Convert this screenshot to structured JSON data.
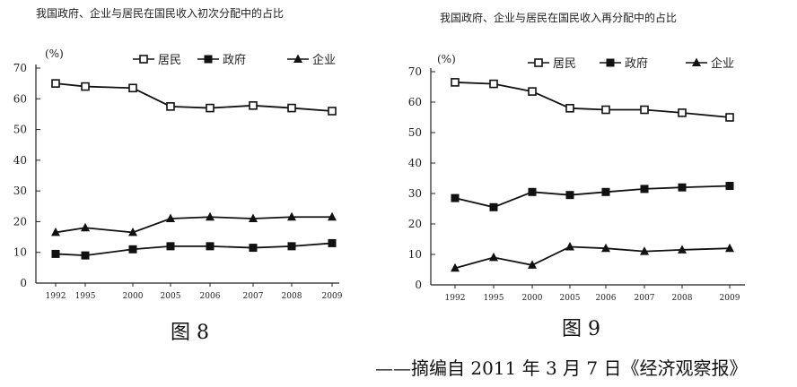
{
  "chart_data": [
    {
      "type": "line",
      "title": "我国政府、企业与居民在国民收入初次分配中的占比",
      "ylabel": "(%)",
      "ylim": [
        0,
        70
      ],
      "yticks": [
        0,
        10,
        20,
        30,
        40,
        50,
        60,
        70
      ],
      "categories": [
        "1992",
        "1995",
        "2000",
        "2005",
        "2006",
        "2007",
        "2008",
        "2009"
      ],
      "series": [
        {
          "name": "居民",
          "marker": "open-square",
          "values": [
            65,
            64,
            63.5,
            57.5,
            57,
            57.8,
            57,
            56
          ]
        },
        {
          "name": "政府",
          "marker": "filled-square",
          "values": [
            9.5,
            9,
            11,
            12,
            12,
            11.5,
            12,
            13
          ]
        },
        {
          "name": "企业",
          "marker": "filled-triangle",
          "values": [
            16.5,
            18,
            16.5,
            21,
            21.5,
            21,
            21.5,
            21.5
          ]
        }
      ],
      "figure_label": "图 8"
    },
    {
      "type": "line",
      "title": "我国政府、企业与居民在国民收入再分配中的占比",
      "ylabel": "(%)",
      "ylim": [
        0,
        70
      ],
      "yticks": [
        0,
        10,
        20,
        30,
        40,
        50,
        60,
        70
      ],
      "categories": [
        "1992",
        "1995",
        "2000",
        "2005",
        "2006",
        "2007",
        "2008",
        "2009"
      ],
      "series": [
        {
          "name": "居民",
          "marker": "open-square",
          "values": [
            66.5,
            66,
            63.5,
            58,
            57.5,
            57.5,
            56.5,
            55
          ]
        },
        {
          "name": "政府",
          "marker": "filled-square",
          "values": [
            28.5,
            25.5,
            30.5,
            29.5,
            30.5,
            31.5,
            32,
            32.5
          ]
        },
        {
          "name": "企业",
          "marker": "filled-triangle",
          "values": [
            5.5,
            9,
            6.5,
            12.5,
            12,
            11,
            11.5,
            12
          ]
        }
      ],
      "figure_label": "图 9"
    }
  ],
  "source_text": "——摘编自 2011 年 3 月 7 日《经济观察报》"
}
